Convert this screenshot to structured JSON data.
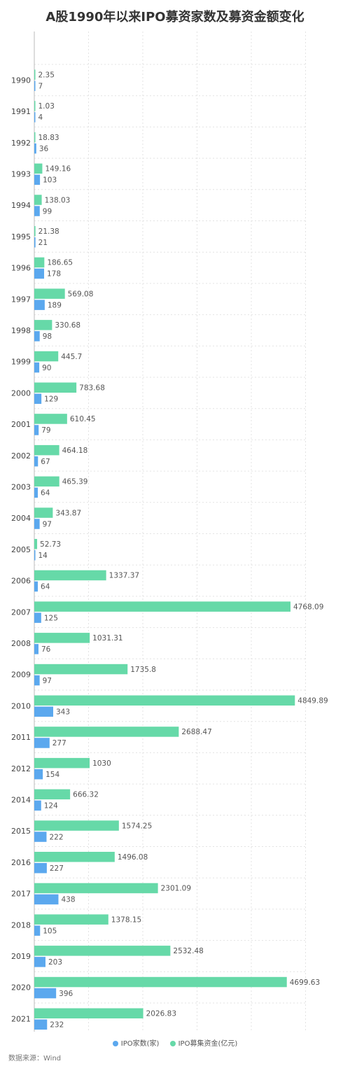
{
  "title": "A股1990年以来IPO募资家数及募资金额变化",
  "source": "数据来源：Wind",
  "colors": {
    "count": "#5BA8EE",
    "amount": "#66D9A8",
    "grid": "#E3E3E3",
    "axis": "#BBBBBB"
  },
  "chart_data": {
    "type": "bar",
    "orientation": "horizontal",
    "categories": [
      "1990",
      "1991",
      "1992",
      "1993",
      "1994",
      "1995",
      "1996",
      "1997",
      "1998",
      "1999",
      "2000",
      "2001",
      "2002",
      "2003",
      "2004",
      "2005",
      "2006",
      "2007",
      "2008",
      "2009",
      "2010",
      "2011",
      "2012",
      "2014",
      "2015",
      "2016",
      "2017",
      "2018",
      "2019",
      "2020",
      "2021"
    ],
    "series": [
      {
        "name": "IPO募集资金(亿元)",
        "color": "#66D9A8",
        "values": [
          2.35,
          1.03,
          18.83,
          149.16,
          138.03,
          21.38,
          186.65,
          569.08,
          330.68,
          445.7,
          783.68,
          610.45,
          464.18,
          465.39,
          343.87,
          52.73,
          1337.37,
          4768.09,
          1031.31,
          1735.8,
          4849.89,
          2688.47,
          1030,
          666.32,
          1574.25,
          1496.08,
          2301.09,
          1378.15,
          2532.48,
          4699.63,
          2026.83
        ]
      },
      {
        "name": "IPO家数(家)",
        "color": "#5BA8EE",
        "values": [
          7,
          4,
          36,
          103,
          99,
          21,
          178,
          189,
          98,
          90,
          129,
          79,
          67,
          64,
          97,
          14,
          64,
          125,
          76,
          97,
          343,
          277,
          154,
          124,
          222,
          227,
          438,
          105,
          203,
          396,
          232
        ]
      }
    ],
    "xlim": [
      0,
      5000
    ],
    "grid": true,
    "legend_position": "bottom"
  },
  "legend": [
    {
      "label": "IPO家数(家)",
      "color": "#5BA8EE"
    },
    {
      "label": "IPO募集资金(亿元)",
      "color": "#66D9A8"
    }
  ]
}
